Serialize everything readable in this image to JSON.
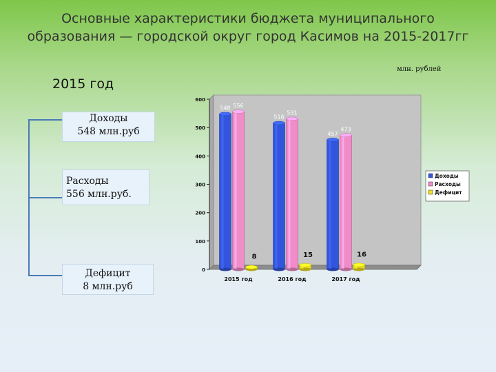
{
  "header": {
    "title_line1": "Основные характеристики бюджета муниципального",
    "title_line2": "образования — городской округ город Касимов на 2015-2017гг",
    "year_label": "2015 год",
    "units": "млн. рублей"
  },
  "boxes": {
    "income_title": "Доходы",
    "income_value": "548 млн.руб",
    "expense_title": "Расходы",
    "expense_value": "556 млн.руб.",
    "deficit_title": "Дефицит",
    "deficit_value": "8 млн.руб"
  },
  "colors": {
    "connector": "#4a7ab8",
    "income": "#3355dd",
    "expense": "#f08cc8",
    "deficit": "#f0e020"
  },
  "chart_data": {
    "type": "bar",
    "style": "3d-cylinder",
    "categories": [
      "2015 год",
      "2016 год",
      "2017 год"
    ],
    "series": [
      {
        "name": "Доходы",
        "values": [
          548,
          516,
          457
        ],
        "color": "#3355dd"
      },
      {
        "name": "Расходы",
        "values": [
          556,
          531,
          473
        ],
        "color": "#f08cc8"
      },
      {
        "name": "Дефицит",
        "values": [
          8,
          15,
          16
        ],
        "color": "#f0e020"
      }
    ],
    "yticks": [
      0,
      100,
      200,
      300,
      400,
      500,
      600
    ],
    "ylim": [
      0,
      600
    ],
    "grid": false,
    "legend": "right"
  }
}
